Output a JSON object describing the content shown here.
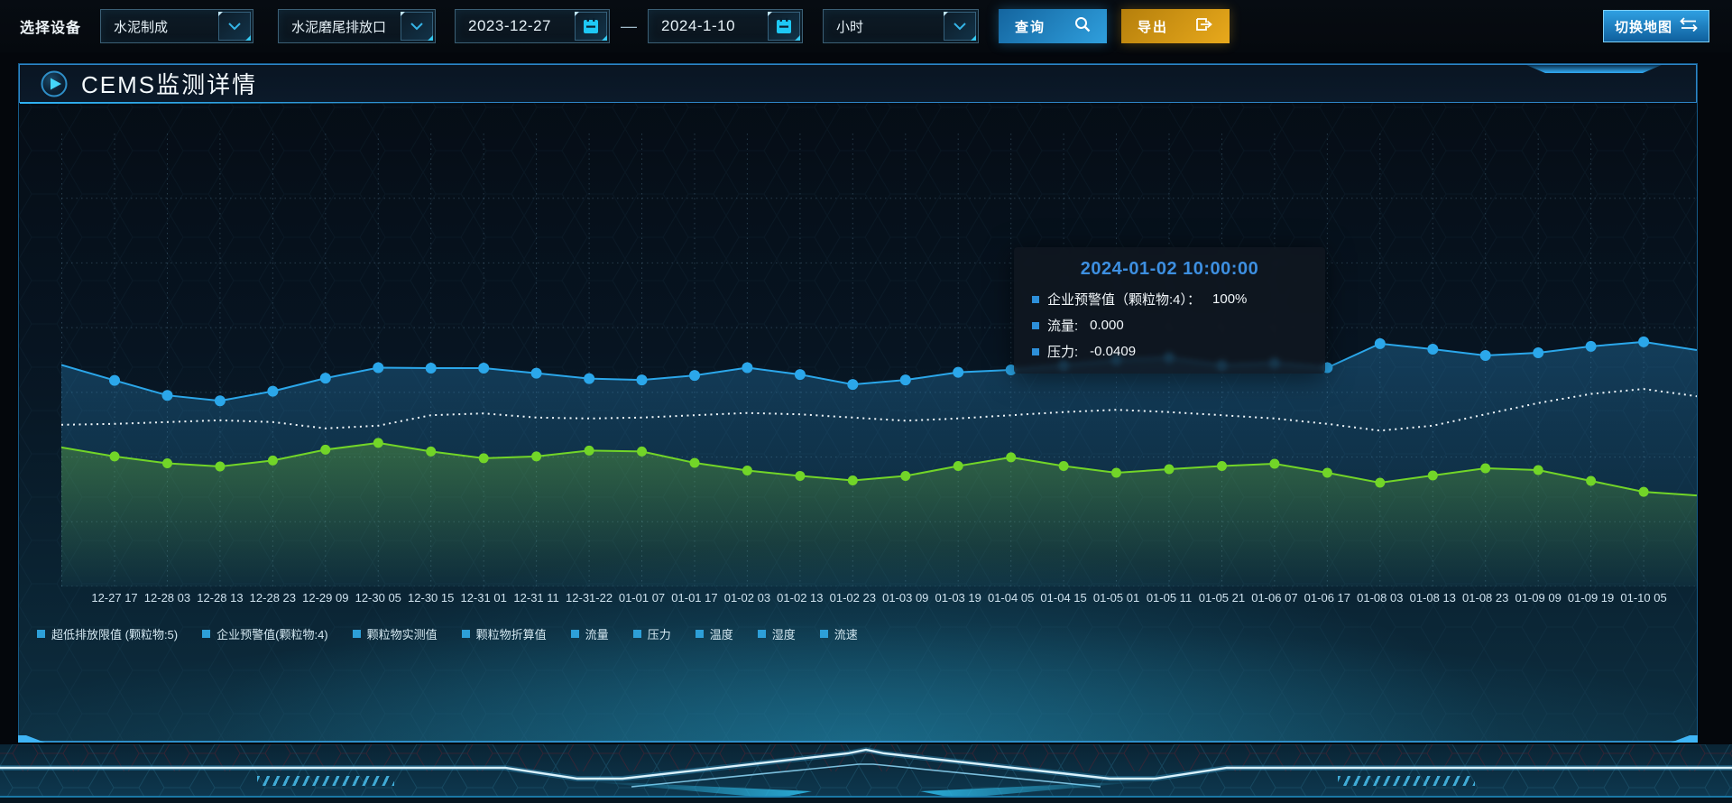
{
  "toolbar": {
    "device_label": "选择设备",
    "category_select": "水泥制成",
    "outlet_select": "水泥磨尾排放口",
    "date_start": "2023-12-27",
    "date_range_separator": "—",
    "date_end": "2024-1-10",
    "interval_select": "小时",
    "query_button": "查询",
    "export_button": "导出",
    "switch_map_button": "切换地图"
  },
  "panel": {
    "title": "CEMS监测详情"
  },
  "tooltip": {
    "title": "2024-01-02 10:00:00",
    "rows": [
      {
        "label": "企业预警值（颗粒物:4）：",
        "value": "100%"
      },
      {
        "label": "流量:",
        "value": "0.000"
      },
      {
        "label": "压力:",
        "value": "-0.0409"
      }
    ]
  },
  "chart_data": {
    "type": "line",
    "title": "CEMS监测详情",
    "xlabel": "",
    "ylabel": "",
    "yaxis_note": "no y-axis ticks shown; series use separate hidden axes, values stored as estimated % of plot height",
    "grid": "dotted",
    "legend_position": "bottom",
    "categories": [
      "12-27 17",
      "12-28 03",
      "12-28 13",
      "12-28 23",
      "12-29 09",
      "12-30 05",
      "12-30 15",
      "12-31 01",
      "12-31 11",
      "12-31-22",
      "01-01 07",
      "01-01 17",
      "01-02 03",
      "01-02 13",
      "01-02 23",
      "01-03 09",
      "01-03 19",
      "01-04 05",
      "01-04 15",
      "01-05 01",
      "01-05 11",
      "01-05 21",
      "01-06 07",
      "01-06 17",
      "01-08 03",
      "01-08 13",
      "01-08 23",
      "01-09 09",
      "01-09 19",
      "01-10 05"
    ],
    "series": [
      {
        "name": "企业预警值(颗粒物:4)",
        "color": "#2ba7ea",
        "line": "solid",
        "markers": true,
        "area": true,
        "tooltip_value": "100%",
        "edge_start_pct": 48.9,
        "edge_end_pct": 52.2,
        "values_pct": [
          45.5,
          42.2,
          41.0,
          43.1,
          46.0,
          48.3,
          48.2,
          48.2,
          47.1,
          45.9,
          45.6,
          46.6,
          48.3,
          46.8,
          44.6,
          45.6,
          47.3,
          47.8,
          48.8,
          50.0,
          50.5,
          48.8,
          49.3,
          48.3,
          53.6,
          52.4,
          51.0,
          51.6,
          53.0,
          54.0
        ]
      },
      {
        "name": "流量",
        "color": "#f0f7fb",
        "line": "dotted",
        "markers": false,
        "area": false,
        "tooltip_value": "0.000",
        "edge_start_pct": 35.7,
        "edge_end_pct": 42.0,
        "values_pct": [
          35.9,
          36.3,
          36.7,
          36.3,
          34.9,
          35.5,
          37.8,
          38.2,
          37.3,
          37.1,
          37.3,
          37.8,
          38.3,
          38.0,
          37.3,
          36.6,
          37.1,
          37.8,
          38.5,
          39.0,
          38.5,
          37.8,
          37.1,
          35.9,
          34.4,
          35.5,
          38.0,
          40.5,
          42.5,
          43.6
        ]
      },
      {
        "name": "压力",
        "color": "#72d528",
        "line": "solid",
        "markers": true,
        "area": true,
        "tooltip_value": "-0.0409",
        "edge_start_pct": 30.7,
        "edge_end_pct": 20.1,
        "values_pct": [
          28.7,
          27.2,
          26.5,
          27.8,
          30.2,
          31.7,
          29.8,
          28.3,
          28.7,
          30.0,
          29.8,
          27.3,
          25.6,
          24.4,
          23.4,
          24.4,
          26.6,
          28.5,
          26.6,
          25.1,
          25.9,
          26.6,
          27.1,
          25.1,
          22.9,
          24.5,
          26.1,
          25.7,
          23.3,
          20.9
        ]
      }
    ],
    "legend": [
      "超低排放限值 (颗粒物:5)",
      "企业预警值(颗粒物:4)",
      "颗粒物实测值",
      "颗粒物折算值",
      "流量",
      "压力",
      "温度",
      "湿度",
      "流速"
    ]
  },
  "icons": {
    "query": "search-icon",
    "export": "export-arrow-icon",
    "switch_map": "swap-arrows-icon",
    "select_chevron": "chevron-down-icon",
    "date_picker": "calendar-icon",
    "panel_title": "play-icon"
  },
  "colors": {
    "accent_cyan": "#2fc8f5",
    "button_blue": "#1f8ecf",
    "button_amber": "#dd9c14",
    "panel_border": "#1d6fa8",
    "series_blue": "#2ba7ea",
    "series_green": "#72d528",
    "series_white": "#f0f7fb",
    "tooltip_title_blue": "#3d8fe0",
    "legend_marker_blue": "#2d9fd8"
  }
}
